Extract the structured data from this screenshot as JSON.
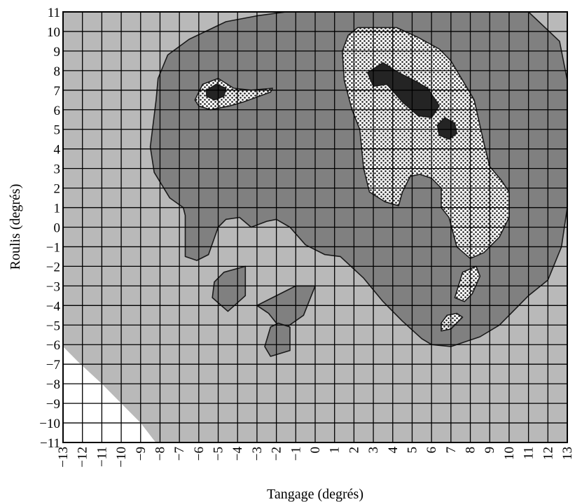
{
  "chart_data": {
    "type": "heatmap",
    "title": "",
    "xlabel": "Tangage (degrés)",
    "ylabel": "Roulis (degrés)",
    "xlim": [
      -13,
      13
    ],
    "ylim": [
      -11,
      11
    ],
    "x_ticks": [
      "−13",
      "−12",
      "−11",
      "−10",
      "−9",
      "−8",
      "−7",
      "−6",
      "−5",
      "−4",
      "−3",
      "−2",
      "−1",
      "0",
      "1",
      "2",
      "3",
      "4",
      "5",
      "6",
      "7",
      "8",
      "9",
      "10",
      "11",
      "12",
      "13"
    ],
    "y_ticks": [
      "11",
      "10",
      "9",
      "8",
      "7",
      "6",
      "5",
      "4",
      "3",
      "2",
      "1",
      "0",
      "−1",
      "−2",
      "−3",
      "−4",
      "−5",
      "−6",
      "−7",
      "−8",
      "−9",
      "−10",
      "−11"
    ],
    "grid": true,
    "legend": "none",
    "colors": {
      "background": "#ffffff",
      "level_1": "#b9b9b9",
      "level_2": "#808080",
      "level_3_hatch": "#ffffff",
      "level_4": "#242424",
      "grid": "#000000"
    },
    "regions": [
      {
        "level": 1,
        "points": [
          [
            -13,
            -6.1
          ],
          [
            -12.2,
            -6.9
          ],
          [
            -11,
            -8
          ],
          [
            -10,
            -9
          ],
          [
            -9,
            -10
          ],
          [
            -8.3,
            -10.9
          ],
          [
            -8.2,
            -11
          ],
          [
            13,
            -11
          ],
          [
            13,
            11
          ],
          [
            -13,
            11
          ]
        ]
      },
      {
        "level": 2,
        "points": [
          [
            -1.5,
            11
          ],
          [
            11,
            11
          ],
          [
            12.6,
            9.5
          ],
          [
            13,
            7.5
          ],
          [
            13,
            1
          ],
          [
            12.7,
            -1
          ],
          [
            12,
            -2.7
          ],
          [
            11,
            -3.5
          ],
          [
            9.5,
            -5
          ],
          [
            8.5,
            -5.6
          ],
          [
            7,
            -6.1
          ],
          [
            6,
            -6
          ],
          [
            5.5,
            -5.7
          ],
          [
            4.5,
            -4.8
          ],
          [
            3.5,
            -3.8
          ],
          [
            2.5,
            -2.6
          ],
          [
            1.3,
            -1.5
          ],
          [
            0.5,
            -1.4
          ],
          [
            -0.5,
            -0.9
          ],
          [
            -1.3,
            0
          ],
          [
            -2,
            0.4
          ],
          [
            -2.5,
            0.3
          ],
          [
            -3.3,
            0
          ],
          [
            -3.9,
            0.5
          ],
          [
            -4.6,
            0.4
          ],
          [
            -5,
            0
          ],
          [
            -5.5,
            -1.4
          ],
          [
            -6.1,
            -1.7
          ],
          [
            -6.7,
            -1.5
          ],
          [
            -6.7,
            0.6
          ],
          [
            -6.8,
            1
          ],
          [
            -7.5,
            1.5
          ],
          [
            -8.3,
            2.8
          ],
          [
            -8.5,
            4.1
          ],
          [
            -8.2,
            6.5
          ],
          [
            -8.1,
            7.6
          ],
          [
            -7.6,
            8.8
          ],
          [
            -6.5,
            9.6
          ],
          [
            -4.6,
            10.5
          ],
          [
            -3,
            10.8
          ]
        ]
      },
      {
        "level": 2,
        "points": [
          [
            -5.2,
            -2.8
          ],
          [
            -4.7,
            -2.3
          ],
          [
            -3.6,
            -2
          ],
          [
            -3.6,
            -3.5
          ],
          [
            -4.5,
            -4.3
          ],
          [
            -5.3,
            -3.6
          ]
        ]
      },
      {
        "level": 2,
        "points": [
          [
            -3,
            -4
          ],
          [
            -1,
            -3
          ],
          [
            0,
            -3
          ],
          [
            -0.6,
            -4.5
          ],
          [
            -1.6,
            -5.2
          ],
          [
            -2,
            -4.9
          ],
          [
            -2.4,
            -4.4
          ]
        ]
      },
      {
        "level": 2,
        "points": [
          [
            -2.3,
            -5.1
          ],
          [
            -1.9,
            -4.9
          ],
          [
            -1.3,
            -5.1
          ],
          [
            -1.3,
            -6.3
          ],
          [
            -2.3,
            -6.6
          ],
          [
            -2.6,
            -6.1
          ]
        ]
      },
      {
        "level": 3,
        "points": [
          [
            2.2,
            10.2
          ],
          [
            4.2,
            10.2
          ],
          [
            5.3,
            9.7
          ],
          [
            6.4,
            9.1
          ],
          [
            7,
            8.5
          ],
          [
            7.6,
            7.5
          ],
          [
            8.2,
            6.5
          ],
          [
            8.7,
            4.3
          ],
          [
            9,
            3.1
          ],
          [
            9.6,
            2.4
          ],
          [
            10,
            1.8
          ],
          [
            10,
            0.5
          ],
          [
            9.5,
            -0.5
          ],
          [
            8.7,
            -1.3
          ],
          [
            8,
            -1.6
          ],
          [
            7.3,
            -1
          ],
          [
            6.9,
            0.5
          ],
          [
            6.5,
            1
          ],
          [
            6.5,
            2
          ],
          [
            6,
            2.5
          ],
          [
            5.4,
            2.7
          ],
          [
            4.9,
            2.6
          ],
          [
            4.5,
            1.8
          ],
          [
            4.3,
            1.1
          ],
          [
            3.6,
            1.3
          ],
          [
            2.8,
            1.8
          ],
          [
            2.5,
            3
          ],
          [
            2.3,
            5
          ],
          [
            1.9,
            6
          ],
          [
            1.5,
            7.5
          ],
          [
            1.4,
            9
          ],
          [
            1.7,
            9.8
          ]
        ]
      },
      {
        "level": 3,
        "points": [
          [
            -6.2,
            6.5
          ],
          [
            -5.8,
            7.3
          ],
          [
            -5,
            7.6
          ],
          [
            -4.2,
            7.1
          ],
          [
            -3.3,
            7
          ],
          [
            -2.2,
            7.1
          ],
          [
            -2.3,
            6.9
          ],
          [
            -3.7,
            6.4
          ],
          [
            -4.4,
            6.2
          ],
          [
            -5.4,
            6
          ],
          [
            -6,
            6.2
          ]
        ]
      },
      {
        "level": 3,
        "points": [
          [
            7.6,
            -2.3
          ],
          [
            8.3,
            -2
          ],
          [
            8.5,
            -2.5
          ],
          [
            8.1,
            -3.4
          ],
          [
            7.7,
            -3.8
          ],
          [
            7.2,
            -3.6
          ]
        ]
      },
      {
        "level": 3,
        "points": [
          [
            6.5,
            -4.9
          ],
          [
            6.8,
            -4.5
          ],
          [
            7.3,
            -4.4
          ],
          [
            7.6,
            -4.6
          ],
          [
            7,
            -5.2
          ],
          [
            6.5,
            -5.3
          ]
        ]
      },
      {
        "level": 4,
        "points": [
          [
            2.7,
            7.9
          ],
          [
            3.5,
            8.4
          ],
          [
            4.3,
            7.9
          ],
          [
            5.1,
            7.5
          ],
          [
            5.8,
            7.1
          ],
          [
            6.4,
            6.2
          ],
          [
            6,
            5.6
          ],
          [
            5.3,
            5.7
          ],
          [
            4.5,
            6.4
          ],
          [
            3.7,
            7.3
          ],
          [
            3,
            7.2
          ]
        ]
      },
      {
        "level": 4,
        "points": [
          [
            6.3,
            5.2
          ],
          [
            6.7,
            5.6
          ],
          [
            7.2,
            5.3
          ],
          [
            7.3,
            4.8
          ],
          [
            6.9,
            4.5
          ],
          [
            6.4,
            4.7
          ]
        ]
      },
      {
        "level": 4,
        "points": [
          [
            -5.6,
            7
          ],
          [
            -5.1,
            7.3
          ],
          [
            -4.6,
            7.1
          ],
          [
            -4.7,
            6.7
          ],
          [
            -5.2,
            6.5
          ],
          [
            -5.6,
            6.7
          ]
        ]
      }
    ]
  }
}
